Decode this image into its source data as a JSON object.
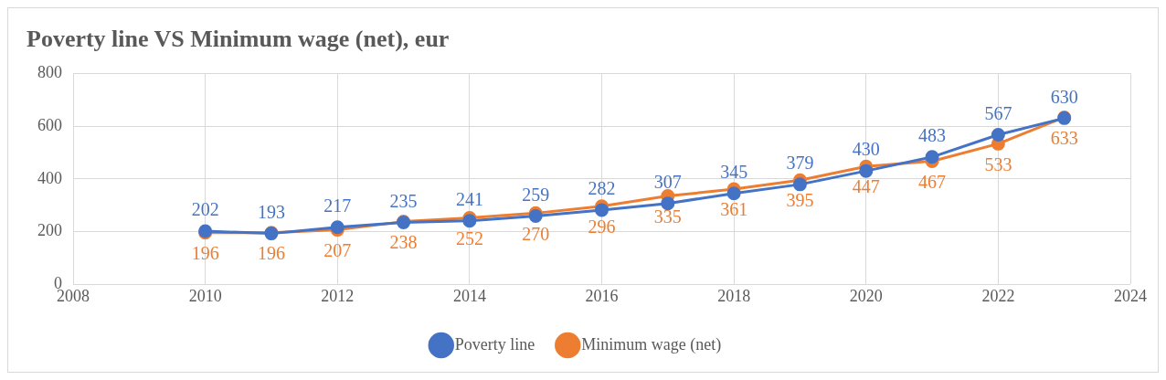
{
  "chart_data": {
    "type": "line",
    "title": "Poverty line VS Minimum wage (net), eur",
    "x": [
      2010,
      2011,
      2012,
      2013,
      2014,
      2015,
      2016,
      2017,
      2018,
      2019,
      2020,
      2021,
      2022,
      2023
    ],
    "series": [
      {
        "name": "Poverty line",
        "color": "#4472c4",
        "values": [
          202,
          193,
          217,
          235,
          241,
          259,
          282,
          307,
          345,
          379,
          430,
          483,
          567,
          630
        ]
      },
      {
        "name": "Minimum wage (net)",
        "color": "#ed7d31",
        "values": [
          196,
          196,
          207,
          238,
          252,
          270,
          296,
          335,
          361,
          395,
          447,
          467,
          533,
          633
        ]
      }
    ],
    "xlim": [
      2008,
      2024
    ],
    "xticks": [
      2008,
      2010,
      2012,
      2014,
      2016,
      2018,
      2020,
      2022,
      2024
    ],
    "ylim": [
      0,
      800
    ],
    "yticks": [
      0,
      200,
      400,
      600,
      800
    ],
    "grid": true,
    "legend": "bottom",
    "marker": "circle",
    "line_style": "solid",
    "data_labels": true
  }
}
